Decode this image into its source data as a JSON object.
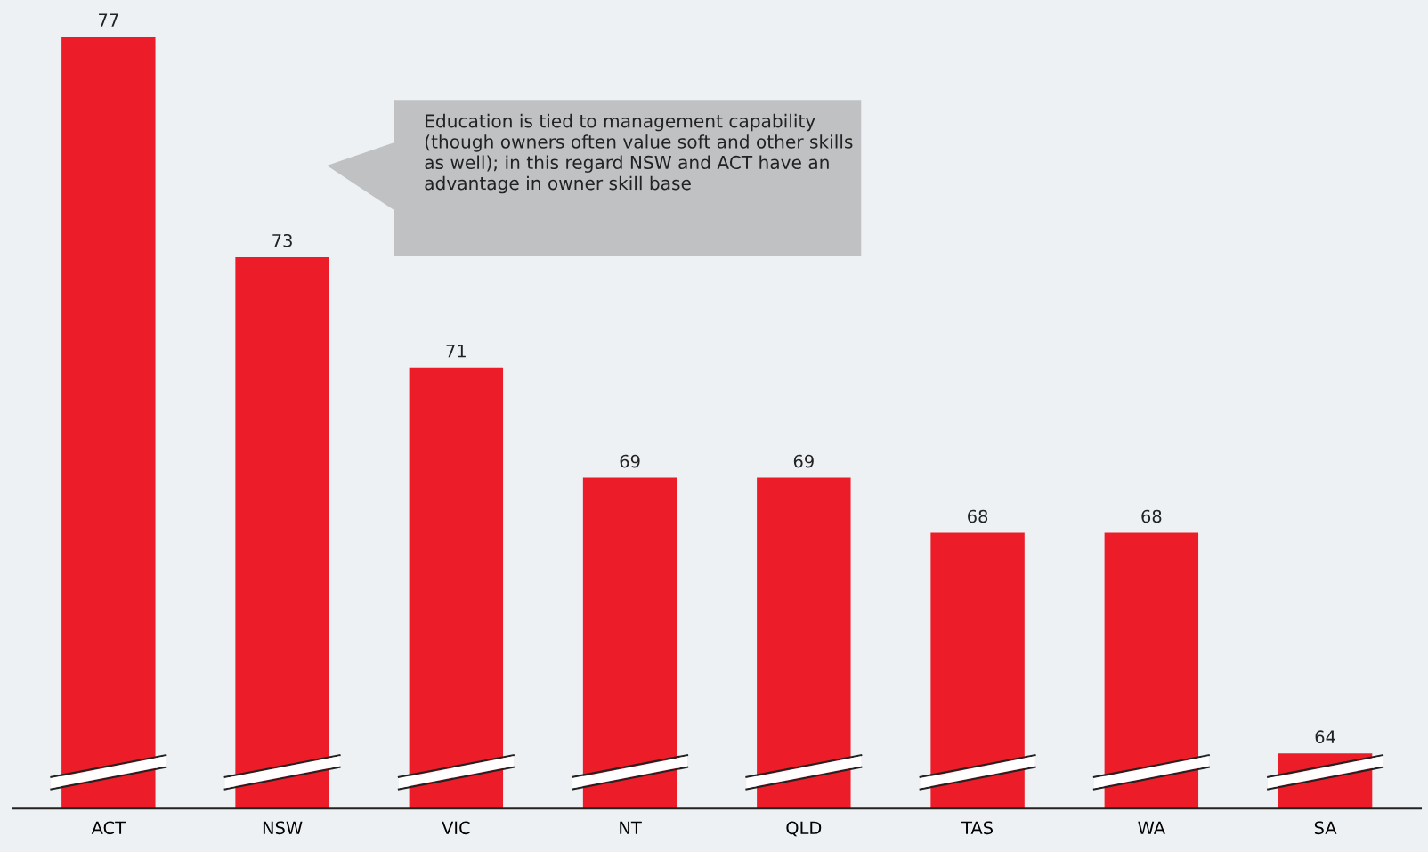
{
  "chart_data": {
    "type": "bar",
    "categories": [
      "ACT",
      "NSW",
      "VIC",
      "NT",
      "QLD",
      "TAS",
      "WA",
      "SA"
    ],
    "values": [
      77,
      73,
      71,
      69,
      69,
      68,
      68,
      64
    ],
    "color": "#ed1c29",
    "data_labels": true,
    "ylim": [
      63,
      77
    ],
    "tick_labels": "x",
    "grid": false,
    "annotations": [
      "Education is tied to management capability (though owners often value soft and other skills as well); in this regard NSW and ACT have an advantage in owner skill base"
    ]
  }
}
